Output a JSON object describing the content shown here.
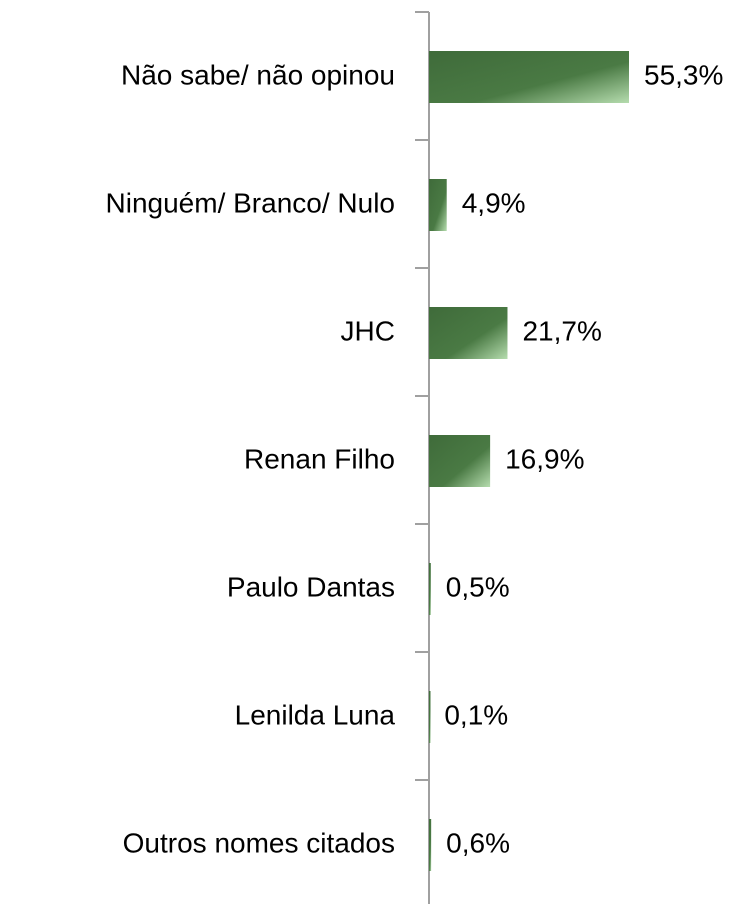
{
  "chart_data": {
    "type": "bar",
    "orientation": "horizontal",
    "categories": [
      "Não sabe/ não opinou",
      "Ninguém/ Branco/ Nulo",
      "JHC",
      "Renan Filho",
      "Paulo Dantas",
      "Lenilda Luna",
      "Outros nomes citados"
    ],
    "values": [
      55.3,
      4.9,
      21.7,
      16.9,
      0.5,
      0.1,
      0.6
    ],
    "value_labels": [
      "55,3%",
      "4,9%",
      "21,7%",
      "16,9%",
      "0,5%",
      "0,1%",
      "0,6%"
    ],
    "color": "#3f6b3a",
    "xlim": [
      0,
      60
    ]
  }
}
